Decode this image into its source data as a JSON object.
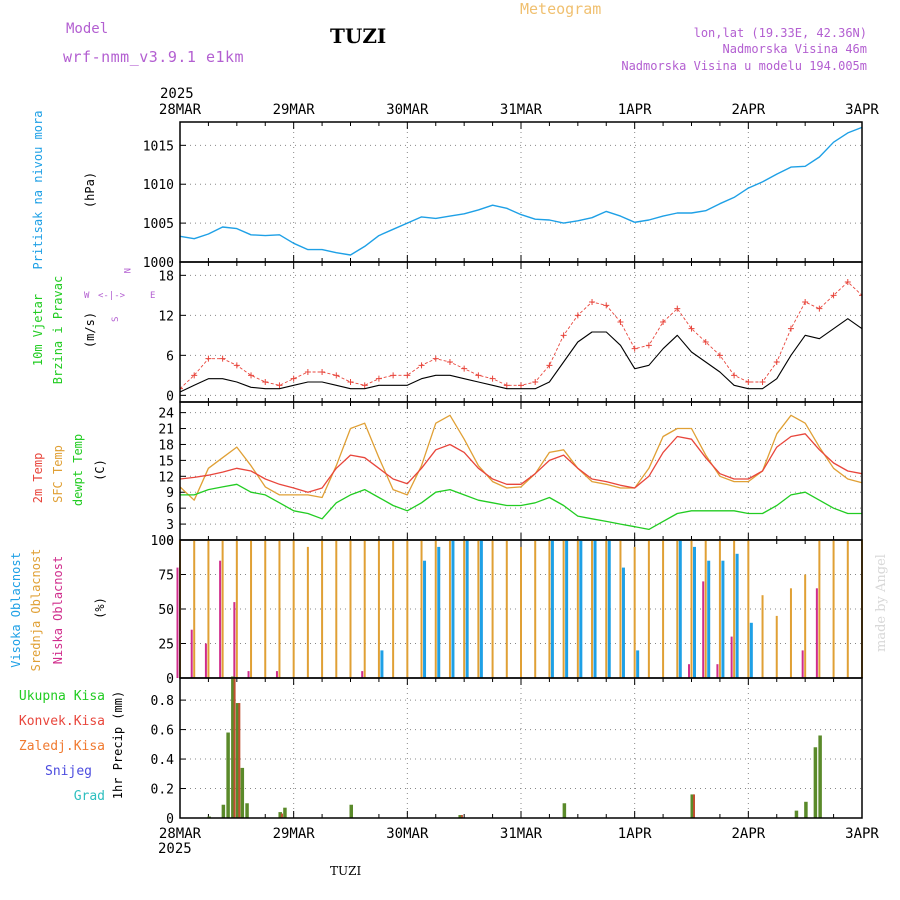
{
  "header": {
    "model_label": "Model",
    "model_name": "wrf-nmm_v3.9.1 e1km",
    "location_title": "TUZI",
    "meteogram_label": "Meteogram",
    "coords": "lon,lat (19.33E, 42.36N)",
    "elevation": "Nadmorska Visina 46m",
    "model_elevation": "Nadmorska Visina u modelu 194.005m"
  },
  "footer": {
    "station": "TUZI",
    "watermark": "made by Angel"
  },
  "time_axis": {
    "year": "2025",
    "days": [
      "28MAR",
      "29MAR",
      "30MAR",
      "31MAR",
      "1APR",
      "2APR",
      "3APR"
    ]
  },
  "colors": {
    "pressure": "#1ea0e6",
    "temp2m": "#e8463c",
    "sfc_temp": "#e0a035",
    "dewpt": "#22cc22",
    "high_cloud": "#1ea0e6",
    "mid_cloud": "#e0a035",
    "low_cloud": "#d02d8c",
    "wind_speed": "#000000",
    "gust": "#e8463c"
  },
  "chart_data": [
    {
      "type": "line",
      "panel": "pressure",
      "labels": [
        "Pritisak na nivou mora",
        "(hPa)"
      ],
      "ylim": [
        1000,
        1018
      ],
      "yticks": [
        1000,
        1005,
        1010,
        1015
      ],
      "x": [
        0,
        3,
        6,
        9,
        12,
        15,
        18,
        21,
        24,
        27,
        30,
        33,
        36,
        39,
        42,
        45,
        48,
        51,
        54,
        57,
        60,
        63,
        66,
        69,
        72,
        75,
        78,
        81,
        84,
        87,
        90,
        93,
        96,
        99,
        102,
        105,
        108,
        111,
        114,
        117,
        120,
        123,
        126,
        129,
        132,
        135,
        138,
        141,
        144
      ],
      "series": [
        {
          "values": [
            1003.3,
            1003.0,
            1003.6,
            1004.5,
            1004.3,
            1003.5,
            1003.4,
            1003.5,
            1002.4,
            1001.6,
            1001.6,
            1001.2,
            1000.9,
            1002.0,
            1003.4,
            1004.2,
            1005.0,
            1005.8,
            1005.6,
            1005.9,
            1006.2,
            1006.7,
            1007.3,
            1006.9,
            1006.1,
            1005.5,
            1005.4,
            1005.0,
            1005.3,
            1005.7,
            1006.5,
            1005.9,
            1005.1,
            1005.4,
            1005.9,
            1006.3,
            1006.3,
            1006.6,
            1007.5,
            1008.3,
            1009.5,
            1010.3,
            1011.3,
            1012.2,
            1012.3,
            1013.5,
            1015.4,
            1016.6,
            1017.3
          ]
        }
      ]
    },
    {
      "type": "line",
      "panel": "wind",
      "labels": [
        "10m Vjetar",
        "Brzina i Pravac",
        "(m/s)"
      ],
      "compass": [
        "N",
        "S",
        "W",
        "E"
      ],
      "ylim": [
        -1,
        20
      ],
      "yticks": [
        0,
        6,
        12,
        18
      ],
      "x": [
        0,
        3,
        6,
        9,
        12,
        15,
        18,
        21,
        24,
        27,
        30,
        33,
        36,
        39,
        42,
        45,
        48,
        51,
        54,
        57,
        60,
        63,
        66,
        69,
        72,
        75,
        78,
        81,
        84,
        87,
        90,
        93,
        96,
        99,
        102,
        105,
        108,
        111,
        114,
        117,
        120,
        123,
        126,
        129,
        132,
        135,
        138,
        141,
        144
      ],
      "series": [
        {
          "values": [
            0.5,
            1.5,
            2.5,
            2.5,
            2.0,
            1.2,
            1.0,
            1.0,
            1.5,
            2.0,
            2.0,
            1.5,
            1.0,
            1.0,
            1.5,
            1.5,
            1.5,
            2.5,
            3.0,
            3.0,
            2.5,
            2.0,
            1.5,
            1.0,
            1.0,
            1.0,
            2.0,
            5.0,
            8.0,
            9.5,
            9.5,
            7.5,
            4.0,
            4.5,
            7.0,
            9.0,
            6.5,
            5.0,
            3.5,
            1.5,
            1.0,
            1.0,
            2.5,
            6.0,
            9.0,
            8.5,
            10.0,
            11.5,
            10.0
          ]
        },
        {
          "values": [
            1.0,
            3.0,
            5.5,
            5.5,
            4.5,
            3.0,
            2.0,
            1.5,
            2.5,
            3.5,
            3.5,
            3.0,
            2.0,
            1.5,
            2.5,
            3.0,
            3.0,
            4.5,
            5.5,
            5.0,
            4.0,
            3.0,
            2.5,
            1.5,
            1.5,
            2.0,
            4.5,
            9.0,
            12.0,
            14.0,
            13.5,
            11.0,
            7.0,
            7.5,
            11.0,
            13.0,
            10.0,
            8.0,
            6.0,
            3.0,
            2.0,
            2.0,
            5.0,
            10.0,
            14.0,
            13.0,
            15.0,
            17.0,
            15.0
          ]
        }
      ]
    },
    {
      "type": "line",
      "panel": "temperature",
      "labels": [
        "2m Temp",
        "SFC Temp",
        "dewpt Temp",
        "(C)"
      ],
      "ylim": [
        0,
        26
      ],
      "yticks": [
        0,
        3,
        6,
        9,
        12,
        15,
        18,
        21,
        24
      ],
      "x": [
        0,
        3,
        6,
        9,
        12,
        15,
        18,
        21,
        24,
        27,
        30,
        33,
        36,
        39,
        42,
        45,
        48,
        51,
        54,
        57,
        60,
        63,
        66,
        69,
        72,
        75,
        78,
        81,
        84,
        87,
        90,
        93,
        96,
        99,
        102,
        105,
        108,
        111,
        114,
        117,
        120,
        123,
        126,
        129,
        132,
        135,
        138,
        141,
        144
      ],
      "series": [
        {
          "values": [
            11.5,
            11.8,
            12.2,
            12.8,
            13.5,
            13.0,
            11.5,
            10.5,
            9.8,
            9.0,
            9.8,
            13.5,
            16.0,
            15.5,
            13.5,
            11.5,
            10.6,
            13.5,
            17.0,
            18.0,
            16.5,
            13.5,
            11.5,
            10.5,
            10.5,
            12.5,
            15.0,
            16.0,
            13.5,
            11.5,
            11.0,
            10.3,
            9.8,
            12.0,
            16.5,
            19.5,
            19.0,
            15.5,
            12.5,
            11.5,
            11.5,
            13.0,
            17.5,
            19.5,
            20.0,
            17.0,
            14.5,
            13.0,
            12.5
          ]
        },
        {
          "values": [
            10.0,
            7.5,
            13.5,
            15.5,
            17.5,
            14.0,
            10.0,
            8.5,
            8.5,
            8.5,
            8.0,
            14.0,
            21.0,
            22.0,
            15.5,
            9.5,
            8.5,
            14.0,
            22.0,
            23.5,
            19.0,
            14.0,
            11.0,
            9.8,
            10.0,
            12.5,
            16.5,
            17.0,
            13.5,
            11.0,
            10.5,
            9.8,
            9.8,
            13.5,
            19.5,
            21.0,
            21.0,
            16.0,
            12.0,
            11.0,
            11.0,
            13.0,
            20.0,
            23.5,
            22.0,
            17.5,
            13.5,
            11.5,
            10.8
          ]
        },
        {
          "values": [
            8.5,
            8.5,
            9.5,
            10.0,
            10.5,
            9.0,
            8.5,
            7.0,
            5.5,
            5.0,
            4.0,
            7.0,
            8.5,
            9.5,
            8.0,
            6.5,
            5.5,
            7.0,
            9.0,
            9.5,
            8.5,
            7.5,
            7.0,
            6.5,
            6.5,
            7.0,
            8.0,
            6.5,
            4.5,
            4.0,
            3.5,
            3.0,
            2.5,
            2.0,
            3.5,
            5.0,
            5.5,
            5.5,
            5.5,
            5.5,
            5.0,
            5.0,
            6.5,
            8.5,
            9.0,
            7.5,
            6.0,
            5.0,
            5.0
          ]
        }
      ]
    },
    {
      "type": "bar",
      "panel": "clouds",
      "labels": [
        "Visoka Oblacnost",
        "Srednja Oblacnost",
        "Niska Oblacnost",
        "(%)"
      ],
      "ylim": [
        0,
        100
      ],
      "yticks": [
        0,
        25,
        50,
        75,
        100
      ],
      "x": [
        0,
        3,
        6,
        9,
        12,
        15,
        18,
        21,
        24,
        27,
        30,
        33,
        36,
        39,
        42,
        45,
        48,
        51,
        54,
        57,
        60,
        63,
        66,
        69,
        72,
        75,
        78,
        81,
        84,
        87,
        90,
        93,
        96,
        99,
        102,
        105,
        108,
        111,
        114,
        117,
        120,
        123,
        126,
        129,
        132,
        135,
        138,
        141,
        144
      ],
      "series": [
        {
          "name": "Visoka Oblacnost",
          "values": [
            0,
            0,
            0,
            0,
            0,
            0,
            0,
            0,
            0,
            0,
            0,
            0,
            0,
            0,
            20,
            0,
            0,
            85,
            95,
            100,
            100,
            100,
            0,
            0,
            0,
            0,
            100,
            100,
            100,
            100,
            100,
            80,
            20,
            0,
            0,
            100,
            95,
            85,
            85,
            90,
            40,
            0,
            0,
            0,
            0,
            0,
            0,
            0,
            0
          ]
        },
        {
          "name": "Srednja Oblacnost",
          "values": [
            100,
            100,
            100,
            100,
            100,
            100,
            100,
            100,
            100,
            95,
            100,
            100,
            100,
            100,
            100,
            100,
            100,
            100,
            100,
            100,
            100,
            100,
            100,
            100,
            95,
            100,
            100,
            100,
            100,
            100,
            100,
            100,
            95,
            100,
            100,
            100,
            100,
            100,
            100,
            100,
            100,
            60,
            45,
            65,
            75,
            100,
            100,
            100,
            100
          ]
        },
        {
          "name": "Niska Oblacnost",
          "values": [
            80,
            35,
            25,
            85,
            55,
            5,
            0,
            5,
            0,
            0,
            0,
            0,
            0,
            5,
            0,
            0,
            0,
            0,
            0,
            0,
            0,
            0,
            0,
            0,
            0,
            0,
            0,
            0,
            0,
            0,
            0,
            0,
            0,
            0,
            0,
            0,
            10,
            70,
            10,
            30,
            0,
            0,
            0,
            0,
            20,
            65,
            0,
            0,
            0
          ]
        }
      ]
    },
    {
      "type": "bar",
      "panel": "precip",
      "labels": [
        "1hr Precip (mm)",
        "Ukupna Kisa",
        "Konvek.Kisa",
        "Zaledj.Kisa",
        "Snijeg",
        "Grad"
      ],
      "ylim": [
        0,
        0.95
      ],
      "yticks": [
        0,
        0.2,
        0.4,
        0.6,
        0.8
      ],
      "x": [
        6,
        9,
        10,
        11,
        12,
        13,
        14,
        21,
        22,
        36,
        59,
        81,
        108,
        130,
        132,
        134,
        135
      ],
      "series": [
        {
          "name": "Ukupna Kisa",
          "values": [
            0.01,
            0.09,
            0.58,
            0.96,
            0.78,
            0.34,
            0.1,
            0.04,
            0.07,
            0.09,
            0.02,
            0.1,
            0.16,
            0.05,
            0.11,
            0.48,
            0.56
          ]
        },
        {
          "name": "Konvek.Kisa",
          "values": [
            0.0,
            0.0,
            0.0,
            0.95,
            0.78,
            0.0,
            0.0,
            0.03,
            0.0,
            0.0,
            0.02,
            0.0,
            0.16,
            0.0,
            0.0,
            0.0,
            0.0
          ]
        }
      ]
    }
  ]
}
